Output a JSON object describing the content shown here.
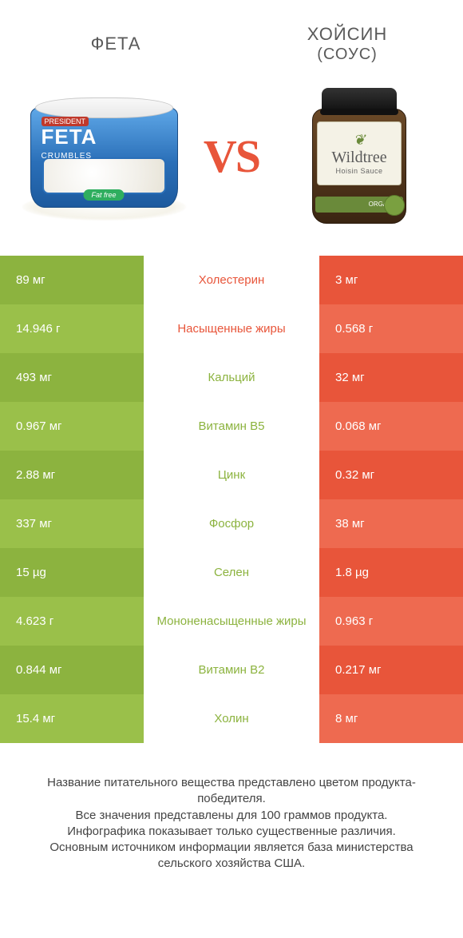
{
  "titles": {
    "left": "ФЕТА",
    "right_line1": "ХОЙСИН",
    "right_line2": "(СОУС)",
    "vs": "VS"
  },
  "products": {
    "feta": {
      "brand": "PRESIDENT",
      "name": "FETA",
      "sub": "CRUMBLES",
      "tag": "Fat free"
    },
    "hoisin": {
      "brand": "Wildtree",
      "sub": "Hoisin Sauce",
      "band": "ORGANIC"
    }
  },
  "colors": {
    "left_bar": "#8cb33f",
    "left_bar_alt": "#9ac04a",
    "right_bar": "#e8553a",
    "right_bar_alt": "#ee6a50",
    "nutrient_left_win": "#8cb33f",
    "nutrient_right_win": "#e8553a",
    "vs": "#e8553a",
    "text": "#444444",
    "background": "#ffffff"
  },
  "table": {
    "left_header_product": "feta",
    "rows": [
      {
        "left": "89 мг",
        "nutrient": "Холестерин",
        "right": "3 мг",
        "winner": "right"
      },
      {
        "left": "14.946 г",
        "nutrient": "Насыщенные жиры",
        "right": "0.568 г",
        "winner": "right"
      },
      {
        "left": "493 мг",
        "nutrient": "Кальций",
        "right": "32 мг",
        "winner": "left"
      },
      {
        "left": "0.967 мг",
        "nutrient": "Витамин B5",
        "right": "0.068 мг",
        "winner": "left"
      },
      {
        "left": "2.88 мг",
        "nutrient": "Цинк",
        "right": "0.32 мг",
        "winner": "left"
      },
      {
        "left": "337 мг",
        "nutrient": "Фосфор",
        "right": "38 мг",
        "winner": "left"
      },
      {
        "left": "15 µg",
        "nutrient": "Селен",
        "right": "1.8 µg",
        "winner": "left"
      },
      {
        "left": "4.623 г",
        "nutrient": "Мононенасыщенные жиры",
        "right": "0.963 г",
        "winner": "left"
      },
      {
        "left": "0.844 мг",
        "nutrient": "Витамин B2",
        "right": "0.217 мг",
        "winner": "left"
      },
      {
        "left": "15.4 мг",
        "nutrient": "Холин",
        "right": "8 мг",
        "winner": "left"
      }
    ]
  },
  "footer": {
    "l1": "Название питательного вещества представлено цветом продукта-победителя.",
    "l2": "Все значения представлены для 100 граммов продукта.",
    "l3": "Инфографика показывает только существенные различия.",
    "l4": "Основным источником информации является база министерства сельского хозяйства США."
  }
}
